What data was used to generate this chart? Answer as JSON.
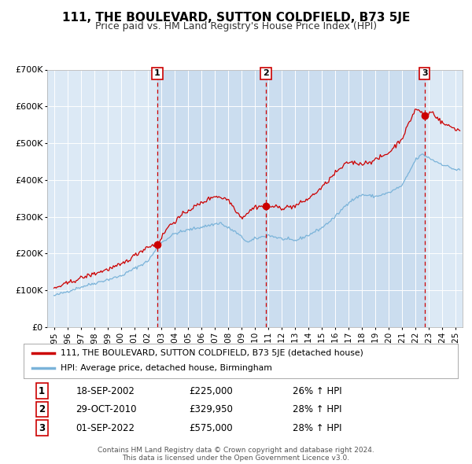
{
  "title": "111, THE BOULEVARD, SUTTON COLDFIELD, B73 5JE",
  "subtitle": "Price paid vs. HM Land Registry's House Price Index (HPI)",
  "title_fontsize": 11,
  "subtitle_fontsize": 9,
  "bg_color": "#ffffff",
  "plot_bg_color": "#dce9f5",
  "grid_color": "#ffffff",
  "red_line_color": "#cc0000",
  "blue_line_color": "#7ab3d9",
  "sale_marker_color": "#cc0000",
  "vline_color": "#cc0000",
  "sale1": {
    "date_x": 2002.72,
    "price": 225000,
    "label": "18-SEP-2002",
    "amount": "£225,000",
    "pct": "26% ↑ HPI"
  },
  "sale2": {
    "date_x": 2010.83,
    "price": 329950,
    "label": "29-OCT-2010",
    "amount": "£329,950",
    "pct": "28% ↑ HPI"
  },
  "sale3": {
    "date_x": 2022.67,
    "price": 575000,
    "label": "01-SEP-2022",
    "amount": "£575,000",
    "pct": "28% ↑ HPI"
  },
  "ylim": [
    0,
    700000
  ],
  "xlim": [
    1994.5,
    2025.5
  ],
  "yticks": [
    0,
    100000,
    200000,
    300000,
    400000,
    500000,
    600000,
    700000
  ],
  "ytick_labels": [
    "£0",
    "£100K",
    "£200K",
    "£300K",
    "£400K",
    "£500K",
    "£600K",
    "£700K"
  ],
  "xtick_years": [
    1995,
    1996,
    1997,
    1998,
    1999,
    2000,
    2001,
    2002,
    2003,
    2004,
    2005,
    2006,
    2007,
    2008,
    2009,
    2010,
    2011,
    2012,
    2013,
    2014,
    2015,
    2016,
    2017,
    2018,
    2019,
    2020,
    2021,
    2022,
    2023,
    2024,
    2025
  ],
  "legend_red_label": "111, THE BOULEVARD, SUTTON COLDFIELD, B73 5JE (detached house)",
  "legend_blue_label": "HPI: Average price, detached house, Birmingham",
  "footer_line1": "Contains HM Land Registry data © Crown copyright and database right 2024.",
  "footer_line2": "This data is licensed under the Open Government Licence v3.0."
}
